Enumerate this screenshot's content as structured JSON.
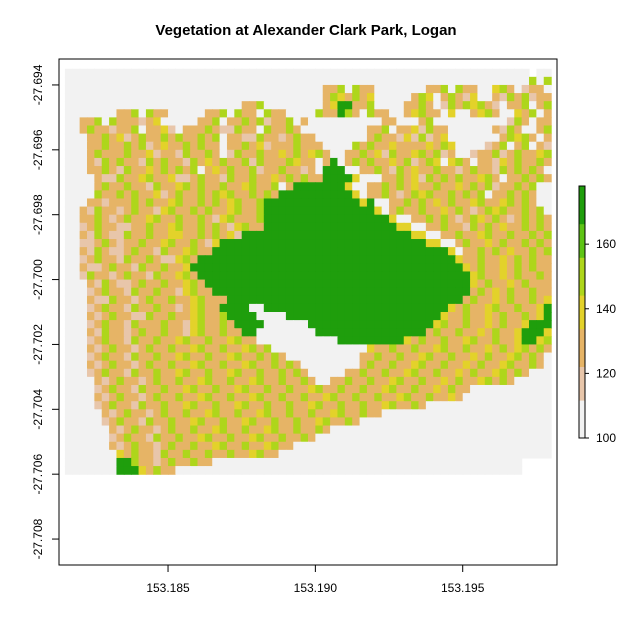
{
  "chart_data": {
    "type": "heatmap",
    "title": "Vegetation at Alexander Clark Park, Logan",
    "xlabel": "",
    "ylabel": "",
    "xlim": [
      153.1813,
      153.1982
    ],
    "ylim": [
      -27.7088,
      -27.6932
    ],
    "x_ticks": [
      153.185,
      153.19,
      153.195
    ],
    "x_tick_labels": [
      "153.185",
      "153.190",
      "153.195"
    ],
    "y_ticks": [
      -27.694,
      -27.696,
      -27.698,
      -27.7,
      -27.702,
      -27.704,
      -27.706,
      -27.708
    ],
    "y_tick_labels": [
      "-27.694",
      "-27.696",
      "-27.698",
      "-27.700",
      "-27.702",
      "-27.704",
      "-27.706",
      "-27.708"
    ],
    "grid": false,
    "legend": {
      "placement": "right",
      "min": 100,
      "max": 178,
      "ticks": [
        100,
        120,
        140,
        160
      ],
      "tick_labels": [
        "100",
        "120",
        "140",
        "160"
      ],
      "colors": [
        "#f2f2f2",
        "#e8c6aa",
        "#e6b466",
        "#e3d22a",
        "#aed61b",
        "#5ec415",
        "#1f9e0c"
      ]
    },
    "raster": {
      "cell_size": 0.00025,
      "x0": 153.1815,
      "y_top": -27.6935,
      "rows": [
        "...............................................................5.......",
        "...............................................................6.6N.....",
        "...................................NN6.6NN.......NN6.6NN..W6N.HNN.......",
        "...................................N6WN6NW.....N6W.N6NHW..NH6N6HNN......",
        "........................NN6........NWGGNN6....NN6N.H6N6W6NH.NN6.N6N.....",
        ".......NN6.6NN.....NN6.6NN.6NN....6NNG6N.6NN..NW6NN.W..NW6N..WN6.N6.....",
        "..NN6.6NNNHNW.....NN6.NN6N6HNN6.N..........NN...N6..........H6N.NN......",
        "..N6NNHNN6.NNWH.NNN6NHH6NN.6NN6N.........NN6.NNWH6NN......NH6N..N6N6.....",
        "...NN6NWHN6NN6N6NN6N6.NNHH6NNHN6NN.......N6NNHWH6HNW.......N6W6N.N6N.....",
        "...NN6NN6N6HNWNN6N6NN.NN6NWHNNN6NNN....6N6NNWNNNNWN6W....HN6.N6.NHN.....",
        "...N6NNN6NNWHNNH6NN6N.H6NN6NNWN6NW6N..NN6NWH6NNW6N6HN..HNN6HN6NNW6H6....",
        "...NH6N6NNH6N6NNH6NWN6NN6H6NNN6WNN.NG.N6N6NNWN6HN6W.W6N.NNHWN6NN6N.....",
        "...NN6NH6NNWN6N6N6.NWN6NN6HNN6NNHN.GGG..NN6NH6NWNN6NNHN6NNH6N6N6N.....",
        "....NHH6NNW6NNWHHN6NNH6NN6NNWN6N6NNGGGGW...NN6NWH6N6N6NNW6N.NN6N6N.....",
        "....N6NN6NNH6NNW6N6NN6NNW6NN6.NGGGGGGGW..NN6N6NWNN6NNWN6N6HNN6N6....",
        "....6NN6N6NNWHN6NN6N6W6NN6N6NGGGGGGGGGGW.NN6NHN6W6NN6N6N6.NN6N6N.....",
        "...NNHNNN6N6NNW6NN6N6NW6NN6GGGGGGGGGGGGGWG..NN6N6NWN6NNW6NNW6N6N.....",
        "..NH6NNHN6NNHW6NN6N6NNW6NN6GGGGGGGGGGGGGGGW.N6NN6NNWN6NHN6W6NN6N6....",
        "..NN6NHN6NNW6NN6NN6NHW6NNN6GGGGGGGGGGGGGGGGGW..NN6N6NHN6WN6NHN6N6N....",
        "..HN6NNHHNN6NNW6NN6N6NHW6NNGGGGGGGGGGGGGGGGGGWW..NN6NNH6N6NWNN6N6N....",
        "..NH6NHH6NN6NNWWNN6N6NWHGGGGGGGGGGGGGGGGGGGGGGGWW..NN6NNW6NN6NN6N6N...",
        "..HHN6NHNN6NNW6NN6NHWGGGGGGGGGGGGGGGGGGGGGGGGGGGGWW..N6NNWN6NN6N6N....",
        "..NH6NHHN6NNH6NNW6NNGGGGGGGGGGGGGGGGGGGGGGGGGGGGGGGGW.NN6N6NWNN6N6N...",
        "..HN6NNH6NN6NHHW6NGGGGGGGGGGGGGGGGGGGGGGGGGGGGGGGGGGGWNN6NNWN6N6NN6..",
        "..NHHN6NNH6NN6NNWGGGGGGGGGGGGGGGGGGGGGGGGGGGGGGGGGGGGGWN6NNWN6N6NN6N..",
        "..H6NNHN6NNH6NNW6NGGGGGGGGGGGGGGGGGGGGGGGGGGGGGGGGGGGGGW6NNWN6NN6N6N..",
        "...NH6NHHN6NN6NNW6NGGGGGGGGGGGGGGGGGGGGGGGGGGGGGGGGGGGGWN6NNWN6NNN6N..",
        "...HN6NNH6NN6NNHW6NNGGGGGGGGGGGGGGGGGGGGGGGGGGGGGGGGGGGN6NWN6NN6NNW..",
        "...NHH6NNHN6NN6NNW6NNNGGGGGGGGGGGGGGGGGGGGGGGGGGGGGGGGN6NNWN6NN6NW6N.",
        "...HN6NNH6NN6NNHNW6NNGGGG..GGGGGGGGGGGGGGGGGGGGGGGGGWN6NNW6NN6NNWG6N.",
        "...NHN6NNHH6NN6NNW6NN6GGGG....GGGGGGGGGGGGGGGGGGGGGWNN6NNWN6NN6NWGG6N",
        "...HN6NNH6NNN6NNHW6NN6NGGGG......GGGGGGGGGGGGGGGGGW6NN6NNWN6NNWGGGW6N",
        "...NH6NNHN6NN6NNHW6NN6NNGG........GGGGGGGGGGGGGGGN6NN6NNWN6NNWGGGW6N.",
        "...HN6NNH6NN6NNW6NN6NNW6NN...........GGGGGGGGGWN6NN6NNW6NN6NNWGGW6N.",
        "...NHN6NNHN6NN6NNW6NN6NNW6N6.............WNN6NN6NNW6NN6NNWN6NW6N6N..",
        "...HN6NNH6NN6NNW6NN6NNW6NN6N6N..........NN6NN6NNW6NN6NNWN6NNW6N6N...",
        "...NHN6NNHN6NN6NNW6NN6NNW6NN6N6N........N6NN6NNW6NN6NNWN6NNW6NN6N...",
        "...HN6NNH6NN6NNW6NN6NNW6NN6NN6N6N.....NN6NN6NNW6NN6NNWN6NNW6N6N.....",
        "....NHN6NNHN6NN6NNW6NN6NNW6NN6NN6N..NN6NN6NNW6NN6NNWN6NNW6N6N.......",
        "....HN6NNH6NN6NNW6NN6NNW6NN6NN6NNW6NN6NN6NNW6NN6NNWN6NN.............",
        "....NHN6NNHN6NN6NNW6NN6NNW6NN6NN6NNW6NN6NN6NNW6NN6NNWN...............",
        "....HN6NNH6NN6NNW6NN6NNW6NN6NN6NNW6NN6NN6NNW6NN6N....................",
        ".....NHN6NNHN6NN6NNW6NN6NNW6NN6NN6NNW6NN6NN...........................",
        ".....HN6NNH6NN6NNW6NN6NNW6NN6NN6NNW6NN6N..............................",
        "......NHN6NNHN6NN6NNW6NN6NNW6NN6NN6N..................................",
        "......HN6NNH6NN6NNW6NN6NNW6NN6NN6N....................................",
        "......NHN6NNHN6NN6NNW6NN6NNW6NN......................................",
        ".......WN6NNH6NN6NN6NN6NNW6NN........................................",
        ".......GG6NNHN6NN6NN..........................................",
        ".......GGGWN6NN..............................................."
      ]
    }
  }
}
